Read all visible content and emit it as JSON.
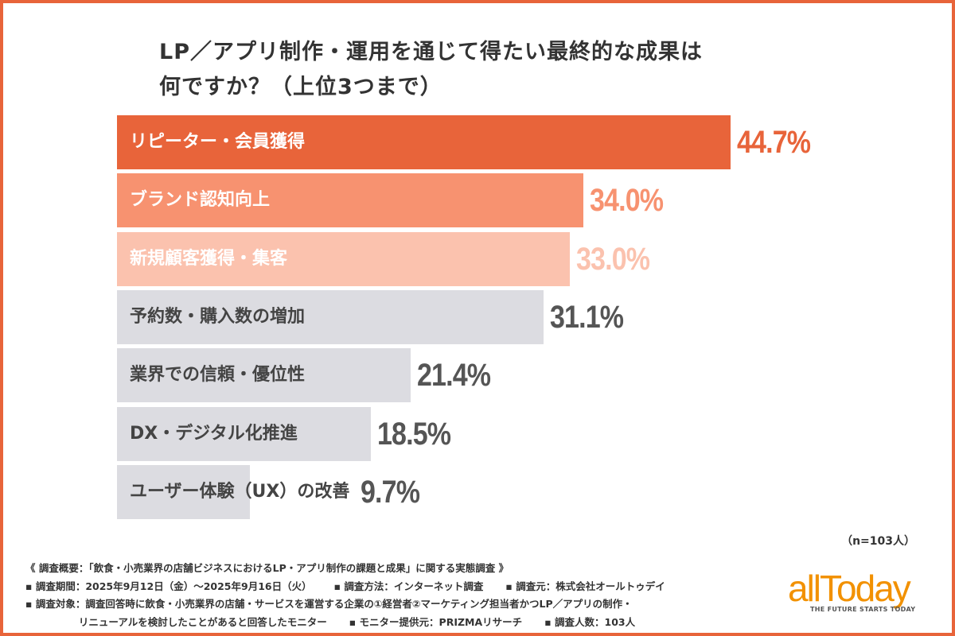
{
  "chart_data": {
    "type": "bar",
    "orientation": "horizontal",
    "title": "LP／アプリ制作・運用を通じて得たい最終的な成果は\n何ですか？（上位3つまで）",
    "title_lines": [
      "LP／アプリ制作・運用を通じて得たい最終的な成果は",
      "何ですか？（上位3つまで）"
    ],
    "categories": [
      "リピーター・会員獲得",
      "ブランド認知向上",
      "新規顧客獲得・集客",
      "予約数・購入数の増加",
      "業界での信頼・優位性",
      "DX・デジタル化推進",
      "ユーザー体験（UX）の改善"
    ],
    "values": [
      44.7,
      34.0,
      33.0,
      31.1,
      21.4,
      18.5,
      9.7
    ],
    "value_labels": [
      "44.7%",
      "34.0%",
      "33.0%",
      "31.1%",
      "21.4%",
      "18.5%",
      "9.7%"
    ],
    "bar_colors": [
      "#e8643a",
      "#f79270",
      "#fbc2ae",
      "#dcdce1",
      "#dcdce1",
      "#dcdce1",
      "#dcdce1"
    ],
    "label_colors": [
      "#ffffff",
      "#ffffff",
      "#ffffff",
      "#444444",
      "#444444",
      "#444444",
      "#444444"
    ],
    "value_colors": [
      "#e8643a",
      "#f79270",
      "#fbc2ae",
      "#555555",
      "#555555",
      "#555555",
      "#555555"
    ],
    "unit": "%",
    "xlim": [
      0,
      50
    ],
    "grid": false,
    "sample_note": "（n=103人）"
  },
  "footer": {
    "lines": [
      [
        "《 調査概要：「飲食・小売業界の店舗ビジネスにおけるLP・アプリ制作の課題と成果」に関する実態調査 》"
      ],
      [
        "▪ 調査期間：2025年9月12日（金）～2025年9月16日（火）",
        "▪ 調査方法：インターネット調査",
        "▪ 調査元：株式会社オールトゥデイ"
      ],
      [
        "▪ 調査対象：調査回答時に飲食・小売業界の店舗・サービスを運営する企業の①経営者②マーケティング担当者かつLP／アプリの制作・"
      ],
      [
        "　　　　　 リニューアルを検討したことがあると回答したモニター",
        "▪ モニター提供元：PRIZMAリサーチ",
        "▪ 調査人数：103人"
      ]
    ]
  },
  "logo": {
    "text": "allToday",
    "tagline": "THE FUTURE STARTS TODAY",
    "color": "#f29100"
  },
  "frame_color": "#e8643a"
}
